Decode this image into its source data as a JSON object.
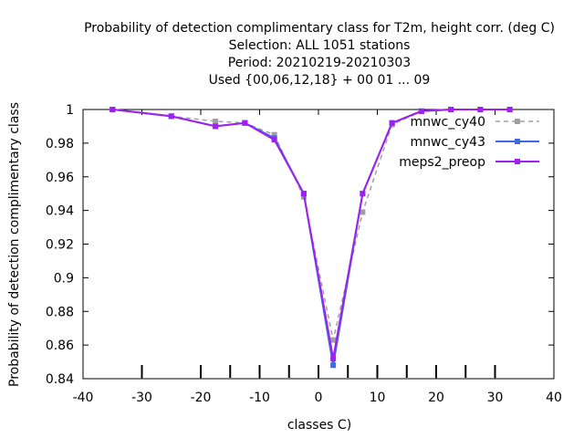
{
  "chart_data": {
    "type": "line",
    "title_lines": [
      "Probability of detection complimentary class  for T2m, height corr. (deg C)",
      "Selection: ALL    1051 stations",
      "Period: 20210219-20210303",
      "Used {00,06,12,18} + 00 01 ... 09"
    ],
    "xlabel": "classes C)",
    "ylabel": "Probability of detection complimentary class",
    "xlim": [
      -40,
      40
    ],
    "ylim": [
      0.84,
      1.0
    ],
    "xticks": [
      -40,
      -30,
      -20,
      -10,
      0,
      10,
      20,
      30,
      40
    ],
    "yticks": [
      0.84,
      0.86,
      0.88,
      0.9,
      0.92,
      0.94,
      0.96,
      0.98,
      1.0
    ],
    "ytick_labels": [
      "0.84",
      "0.86",
      "0.88",
      "0.9",
      "0.92",
      "0.94",
      "0.96",
      "0.98",
      "1"
    ],
    "class_markers_x": [
      -30,
      -20,
      -15,
      -10,
      -5,
      0,
      5,
      10,
      15,
      20,
      25,
      30
    ],
    "grid": false,
    "legend_position": "top-right",
    "series": [
      {
        "name": "mnwc_cy40",
        "color": "#a0a0a0",
        "dashed": true,
        "x": [
          -35,
          -25,
          -17.5,
          -12.5,
          -7.5,
          -2.5,
          2.5,
          7.5,
          12.5,
          17.5,
          22.5,
          27.5,
          32.5
        ],
        "y": [
          1.0,
          0.996,
          0.993,
          0.992,
          0.985,
          0.948,
          0.863,
          0.939,
          0.991,
          0.999,
          1.0,
          1.0,
          1.0
        ]
      },
      {
        "name": "mnwc_cy43",
        "color": "#4169e1",
        "dashed": false,
        "x": [
          -35,
          -25,
          -17.5,
          -12.5,
          -7.5,
          -2.5,
          2.5,
          7.5,
          12.5,
          17.5,
          22.5,
          27.5,
          32.5
        ],
        "y": [
          1.0,
          0.996,
          0.99,
          0.992,
          0.983,
          0.95,
          0.848,
          0.95,
          0.992,
          0.999,
          1.0,
          1.0,
          1.0
        ]
      },
      {
        "name": "meps2_preop",
        "color": "#a020f0",
        "dashed": false,
        "x": [
          -35,
          -25,
          -17.5,
          -12.5,
          -7.5,
          -2.5,
          2.5,
          7.5,
          12.5,
          17.5,
          22.5,
          27.5,
          32.5
        ],
        "y": [
          1.0,
          0.996,
          0.99,
          0.992,
          0.982,
          0.95,
          0.852,
          0.95,
          0.992,
          0.999,
          1.0,
          1.0,
          1.0
        ]
      }
    ]
  }
}
